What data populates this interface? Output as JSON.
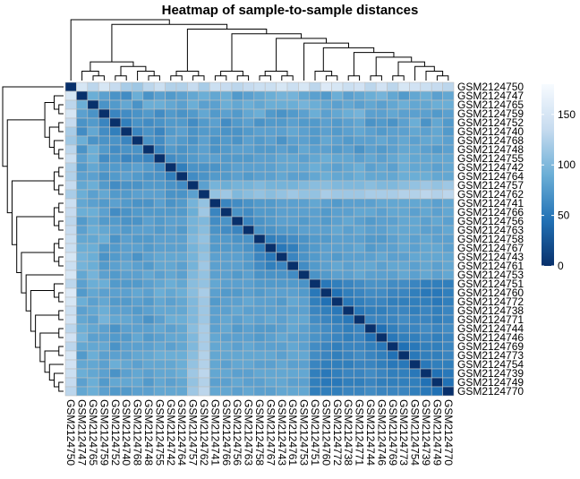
{
  "chart_data": {
    "type": "heatmap",
    "title": "Heatmap of sample-to-sample distances",
    "xlabel": "",
    "ylabel": "",
    "labels": [
      "GSM2124750",
      "GSM2124747",
      "GSM2124765",
      "GSM2124759",
      "GSM2124752",
      "GSM2124740",
      "GSM2124768",
      "GSM2124748",
      "GSM2124755",
      "GSM2124742",
      "GSM2124764",
      "GSM2124757",
      "GSM2124762",
      "GSM2124741",
      "GSM2124766",
      "GSM2124756",
      "GSM2124763",
      "GSM2124758",
      "GSM2124767",
      "GSM2124743",
      "GSM2124761",
      "GSM2124753",
      "GSM2124751",
      "GSM2124760",
      "GSM2124772",
      "GSM2124738",
      "GSM2124771",
      "GSM2124744",
      "GSM2124746",
      "GSM2124769",
      "GSM2124773",
      "GSM2124754",
      "GSM2124739",
      "GSM2124749",
      "GSM2124770"
    ],
    "legend": {
      "ticks": [
        0,
        50,
        100,
        150
      ],
      "min": 0,
      "max": 180,
      "colors": [
        "#08306B",
        "#2171B5",
        "#6BAED6",
        "#C6DBEF",
        "#F7FBFF"
      ]
    },
    "cell_border_color": "#BFBFBF",
    "matrix": [
      [
        0,
        150,
        130,
        150,
        135,
        120,
        115,
        130,
        140,
        125,
        125,
        135,
        120,
        140,
        135,
        130,
        135,
        140,
        140,
        150,
        140,
        150,
        130,
        155,
        150,
        140,
        145,
        130,
        145,
        130,
        150,
        145,
        140,
        135,
        130
      ],
      [
        150,
        0,
        90,
        80,
        70,
        65,
        90,
        70,
        80,
        75,
        80,
        85,
        90,
        85,
        90,
        75,
        80,
        85,
        90,
        95,
        95,
        85,
        80,
        75,
        90,
        80,
        85,
        90,
        95,
        85,
        75,
        85,
        90,
        80,
        85
      ],
      [
        130,
        90,
        0,
        70,
        75,
        85,
        70,
        90,
        90,
        85,
        80,
        90,
        80,
        80,
        90,
        85,
        90,
        85,
        90,
        90,
        90,
        95,
        90,
        85,
        80,
        85,
        80,
        85,
        80,
        85,
        90,
        85,
        85,
        90,
        90
      ],
      [
        150,
        80,
        70,
        0,
        60,
        65,
        70,
        75,
        65,
        75,
        70,
        75,
        85,
        75,
        80,
        75,
        85,
        90,
        75,
        70,
        75,
        80,
        90,
        80,
        85,
        90,
        95,
        80,
        80,
        85,
        80,
        80,
        80,
        75,
        80
      ],
      [
        135,
        70,
        75,
        60,
        0,
        55,
        70,
        65,
        70,
        75,
        75,
        65,
        75,
        80,
        65,
        75,
        80,
        70,
        75,
        75,
        80,
        75,
        75,
        80,
        75,
        80,
        85,
        70,
        75,
        70,
        80,
        90,
        70,
        85,
        75
      ],
      [
        120,
        65,
        85,
        65,
        55,
        0,
        60,
        70,
        60,
        75,
        80,
        70,
        75,
        75,
        70,
        70,
        75,
        80,
        80,
        80,
        85,
        80,
        75,
        80,
        75,
        80,
        85,
        80,
        75,
        80,
        80,
        85,
        80,
        85,
        75
      ],
      [
        115,
        90,
        70,
        70,
        70,
        60,
        0,
        70,
        65,
        80,
        75,
        70,
        80,
        70,
        75,
        70,
        80,
        75,
        80,
        70,
        80,
        80,
        75,
        85,
        80,
        75,
        80,
        80,
        85,
        80,
        85,
        80,
        85,
        85,
        80
      ],
      [
        130,
        70,
        90,
        75,
        65,
        70,
        70,
        0,
        60,
        75,
        70,
        75,
        80,
        70,
        75,
        80,
        80,
        75,
        75,
        80,
        75,
        85,
        80,
        80,
        75,
        80,
        70,
        80,
        75,
        80,
        85,
        85,
        80,
        75,
        80
      ],
      [
        140,
        80,
        90,
        65,
        70,
        60,
        65,
        60,
        0,
        65,
        70,
        75,
        80,
        80,
        75,
        75,
        75,
        80,
        80,
        85,
        85,
        80,
        85,
        90,
        85,
        85,
        80,
        85,
        80,
        85,
        90,
        85,
        85,
        85,
        85
      ],
      [
        125,
        75,
        85,
        75,
        75,
        75,
        80,
        75,
        65,
        0,
        55,
        70,
        70,
        70,
        75,
        80,
        80,
        80,
        80,
        85,
        85,
        85,
        90,
        85,
        80,
        85,
        90,
        80,
        85,
        80,
        90,
        85,
        85,
        80,
        85
      ],
      [
        125,
        80,
        80,
        70,
        75,
        80,
        75,
        70,
        70,
        55,
        0,
        65,
        70,
        75,
        75,
        80,
        75,
        80,
        80,
        85,
        80,
        80,
        85,
        90,
        85,
        85,
        90,
        85,
        85,
        85,
        90,
        90,
        90,
        85,
        85
      ],
      [
        135,
        85,
        90,
        75,
        65,
        70,
        70,
        75,
        75,
        70,
        65,
        0,
        80,
        95,
        90,
        95,
        95,
        100,
        95,
        95,
        95,
        100,
        105,
        105,
        100,
        100,
        100,
        105,
        100,
        100,
        105,
        110,
        115,
        110,
        115
      ],
      [
        120,
        90,
        80,
        85,
        75,
        75,
        80,
        80,
        80,
        70,
        70,
        80,
        0,
        110,
        115,
        100,
        105,
        110,
        105,
        110,
        115,
        110,
        110,
        120,
        115,
        115,
        115,
        120,
        120,
        120,
        125,
        125,
        130,
        125,
        130
      ],
      [
        140,
        85,
        80,
        75,
        80,
        75,
        70,
        70,
        80,
        70,
        75,
        95,
        110,
        0,
        60,
        65,
        70,
        75,
        75,
        80,
        80,
        80,
        85,
        80,
        75,
        80,
        80,
        80,
        85,
        85,
        85,
        85,
        85,
        80,
        85
      ],
      [
        135,
        90,
        90,
        80,
        65,
        70,
        75,
        75,
        75,
        75,
        75,
        90,
        115,
        60,
        0,
        70,
        65,
        75,
        75,
        80,
        80,
        80,
        80,
        75,
        80,
        80,
        85,
        85,
        80,
        85,
        85,
        80,
        85,
        80,
        85
      ],
      [
        130,
        75,
        85,
        75,
        75,
        70,
        70,
        80,
        75,
        80,
        80,
        95,
        100,
        65,
        70,
        0,
        60,
        70,
        75,
        80,
        80,
        75,
        80,
        75,
        80,
        85,
        80,
        75,
        80,
        80,
        85,
        85,
        80,
        85,
        80
      ],
      [
        135,
        80,
        90,
        85,
        80,
        75,
        80,
        80,
        75,
        80,
        75,
        95,
        105,
        70,
        65,
        60,
        0,
        70,
        70,
        75,
        75,
        80,
        80,
        80,
        85,
        80,
        85,
        80,
        80,
        85,
        85,
        85,
        80,
        80,
        85
      ],
      [
        140,
        85,
        85,
        90,
        70,
        80,
        75,
        75,
        80,
        80,
        80,
        100,
        110,
        75,
        75,
        70,
        70,
        0,
        55,
        60,
        65,
        70,
        75,
        75,
        80,
        80,
        80,
        75,
        75,
        80,
        85,
        80,
        85,
        80,
        80
      ],
      [
        140,
        90,
        90,
        75,
        75,
        80,
        80,
        75,
        80,
        80,
        80,
        95,
        105,
        75,
        75,
        75,
        70,
        55,
        0,
        50,
        55,
        70,
        75,
        80,
        80,
        80,
        85,
        75,
        80,
        80,
        85,
        80,
        85,
        85,
        80
      ],
      [
        150,
        95,
        90,
        70,
        75,
        80,
        70,
        80,
        85,
        85,
        85,
        95,
        110,
        80,
        80,
        80,
        75,
        60,
        50,
        0,
        60,
        70,
        75,
        80,
        75,
        80,
        80,
        80,
        85,
        80,
        80,
        85,
        85,
        85,
        85
      ],
      [
        140,
        95,
        90,
        75,
        80,
        85,
        80,
        75,
        85,
        85,
        80,
        95,
        115,
        80,
        80,
        80,
        75,
        65,
        55,
        60,
        0,
        65,
        75,
        80,
        85,
        80,
        85,
        85,
        80,
        85,
        85,
        80,
        85,
        80,
        85
      ],
      [
        150,
        85,
        95,
        80,
        75,
        80,
        80,
        85,
        80,
        85,
        80,
        100,
        110,
        80,
        80,
        75,
        80,
        70,
        70,
        70,
        65,
        0,
        70,
        75,
        80,
        80,
        85,
        80,
        80,
        80,
        85,
        80,
        85,
        80,
        85
      ],
      [
        130,
        80,
        90,
        90,
        75,
        75,
        75,
        80,
        85,
        90,
        85,
        105,
        110,
        85,
        80,
        80,
        80,
        75,
        75,
        75,
        75,
        70,
        0,
        50,
        55,
        60,
        65,
        70,
        70,
        65,
        65,
        60,
        55,
        55,
        55
      ],
      [
        155,
        75,
        85,
        80,
        80,
        80,
        85,
        80,
        90,
        85,
        90,
        105,
        120,
        80,
        75,
        75,
        80,
        75,
        80,
        80,
        80,
        75,
        50,
        0,
        45,
        55,
        60,
        65,
        65,
        60,
        60,
        55,
        50,
        50,
        55
      ],
      [
        150,
        90,
        80,
        85,
        75,
        75,
        80,
        75,
        85,
        80,
        85,
        100,
        115,
        75,
        80,
        80,
        85,
        80,
        80,
        75,
        85,
        80,
        55,
        45,
        0,
        50,
        55,
        60,
        60,
        55,
        55,
        55,
        55,
        50,
        55
      ],
      [
        140,
        80,
        85,
        90,
        80,
        80,
        75,
        80,
        85,
        85,
        85,
        100,
        115,
        80,
        80,
        85,
        80,
        80,
        80,
        80,
        80,
        80,
        60,
        55,
        50,
        0,
        50,
        55,
        55,
        60,
        60,
        55,
        60,
        55,
        60
      ],
      [
        145,
        85,
        80,
        95,
        85,
        85,
        80,
        70,
        80,
        90,
        90,
        100,
        115,
        80,
        85,
        80,
        85,
        80,
        85,
        80,
        85,
        85,
        65,
        60,
        55,
        50,
        0,
        60,
        60,
        60,
        65,
        60,
        60,
        55,
        60
      ],
      [
        130,
        90,
        85,
        80,
        70,
        80,
        80,
        80,
        85,
        80,
        85,
        105,
        120,
        80,
        85,
        75,
        80,
        75,
        75,
        80,
        85,
        80,
        70,
        65,
        60,
        55,
        60,
        0,
        45,
        55,
        60,
        60,
        65,
        60,
        65
      ],
      [
        145,
        95,
        80,
        80,
        75,
        75,
        85,
        75,
        80,
        85,
        85,
        100,
        120,
        85,
        80,
        80,
        80,
        75,
        80,
        85,
        80,
        80,
        70,
        65,
        60,
        55,
        60,
        45,
        0,
        50,
        55,
        55,
        60,
        55,
        60
      ],
      [
        130,
        85,
        85,
        85,
        70,
        80,
        80,
        80,
        85,
        80,
        85,
        100,
        120,
        85,
        85,
        80,
        85,
        80,
        80,
        80,
        85,
        80,
        65,
        60,
        55,
        60,
        60,
        55,
        50,
        0,
        45,
        50,
        55,
        55,
        60
      ],
      [
        150,
        75,
        90,
        80,
        80,
        80,
        85,
        85,
        90,
        90,
        90,
        105,
        125,
        85,
        85,
        85,
        85,
        85,
        85,
        80,
        85,
        85,
        65,
        60,
        55,
        60,
        65,
        60,
        55,
        45,
        0,
        50,
        55,
        55,
        60
      ],
      [
        145,
        85,
        85,
        80,
        90,
        85,
        80,
        85,
        85,
        85,
        90,
        110,
        125,
        85,
        80,
        85,
        85,
        80,
        80,
        85,
        80,
        80,
        60,
        55,
        55,
        55,
        60,
        60,
        55,
        50,
        50,
        0,
        50,
        55,
        55
      ],
      [
        140,
        90,
        85,
        80,
        70,
        80,
        85,
        80,
        85,
        85,
        90,
        115,
        130,
        85,
        85,
        80,
        80,
        85,
        85,
        85,
        85,
        85,
        55,
        50,
        55,
        60,
        60,
        65,
        60,
        55,
        55,
        50,
        0,
        45,
        50
      ],
      [
        135,
        80,
        90,
        75,
        85,
        85,
        85,
        75,
        85,
        80,
        85,
        110,
        125,
        80,
        80,
        85,
        80,
        80,
        85,
        85,
        80,
        80,
        55,
        50,
        50,
        55,
        55,
        60,
        55,
        55,
        55,
        55,
        45,
        0,
        45
      ],
      [
        130,
        85,
        90,
        80,
        75,
        75,
        80,
        80,
        85,
        85,
        85,
        115,
        130,
        85,
        85,
        80,
        85,
        80,
        80,
        85,
        85,
        85,
        55,
        55,
        55,
        60,
        60,
        65,
        60,
        60,
        60,
        55,
        50,
        45,
        0
      ]
    ]
  }
}
